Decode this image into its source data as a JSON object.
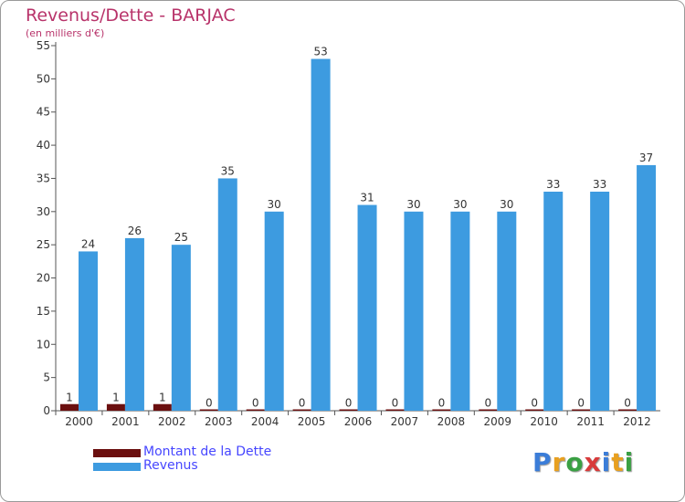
{
  "chart_data": {
    "type": "bar",
    "title": "Revenus/Dette - BARJAC",
    "subtitle": "(en milliers d'€)",
    "categories": [
      "2000",
      "2001",
      "2002",
      "2003",
      "2004",
      "2005",
      "2006",
      "2007",
      "2008",
      "2009",
      "2010",
      "2011",
      "2012"
    ],
    "series": [
      {
        "name": "Montant de la Dette",
        "color": "#6b0f0f",
        "values": [
          1,
          1,
          1,
          0,
          0,
          0,
          0,
          0,
          0,
          0,
          0,
          0,
          0
        ]
      },
      {
        "name": "Revenus",
        "color": "#3d9be0",
        "values": [
          24,
          26,
          25,
          35,
          30,
          53,
          31,
          30,
          30,
          30,
          33,
          33,
          37
        ]
      }
    ],
    "ylim": [
      0,
      55
    ],
    "yticks": [
      0,
      5,
      10,
      15,
      20,
      25,
      30,
      35,
      40,
      45,
      50,
      55
    ],
    "grid": false,
    "legend": "bottom-left"
  },
  "brand": {
    "letters": [
      "P",
      "r",
      "o",
      "x",
      "i",
      "t",
      "i"
    ],
    "colors": [
      "#3b7dd8",
      "#e8a020",
      "#3aa043",
      "#d83b3b",
      "#3b7dd8",
      "#e8a020",
      "#3aa043"
    ]
  }
}
